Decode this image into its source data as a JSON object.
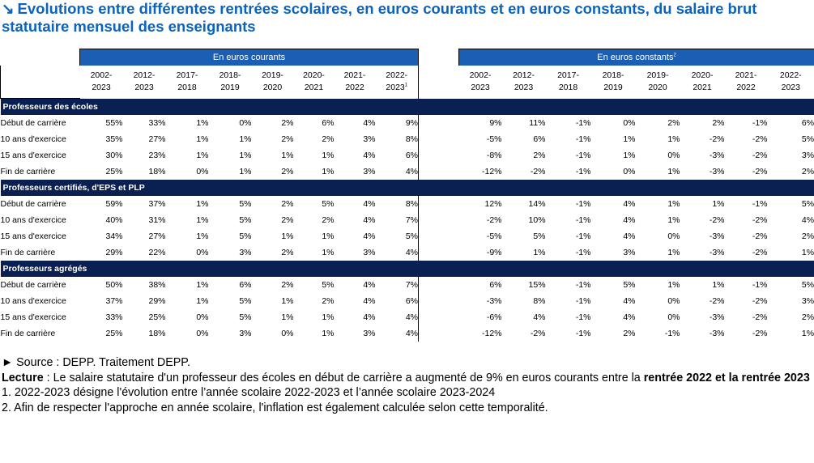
{
  "title": "Evolutions entre différentes rentrées scolaires, en euros courants et en euros constants, du salaire brut statutaire mensuel des enseignants",
  "title_icon": "arrow-down-right-icon",
  "colors": {
    "title": "#0a63c2",
    "band": "#1a5fb4",
    "group_row": "#0a2052"
  },
  "headers": {
    "courants": "En euros courants",
    "constants": "En euros constants",
    "constants_sup": "2"
  },
  "years_courants": [
    {
      "l1": "2002-",
      "l2": "2023",
      "sup": ""
    },
    {
      "l1": "2012-",
      "l2": "2023",
      "sup": ""
    },
    {
      "l1": "2017-",
      "l2": "2018",
      "sup": ""
    },
    {
      "l1": "2018-",
      "l2": "2019",
      "sup": ""
    },
    {
      "l1": "2019-",
      "l2": "2020",
      "sup": ""
    },
    {
      "l1": "2020-",
      "l2": "2021",
      "sup": ""
    },
    {
      "l1": "2021-",
      "l2": "2022",
      "sup": ""
    },
    {
      "l1": "2022-",
      "l2": "2023",
      "sup": "1"
    }
  ],
  "years_constants": [
    {
      "l1": "2002-",
      "l2": "2023",
      "sup": ""
    },
    {
      "l1": "2012-",
      "l2": "2023",
      "sup": ""
    },
    {
      "l1": "2017-",
      "l2": "2018",
      "sup": ""
    },
    {
      "l1": "2018-",
      "l2": "2019",
      "sup": ""
    },
    {
      "l1": "2019-",
      "l2": "2020",
      "sup": ""
    },
    {
      "l1": "2020-",
      "l2": "2021",
      "sup": ""
    },
    {
      "l1": "2021-",
      "l2": "2022",
      "sup": ""
    },
    {
      "l1": "2022-",
      "l2": "2023",
      "sup": ""
    }
  ],
  "groups": [
    {
      "name": "Professeurs des écoles",
      "rows": [
        {
          "label": "Début de carrière",
          "courants": [
            "55%",
            "33%",
            "1%",
            "0%",
            "2%",
            "6%",
            "4%",
            "9%"
          ],
          "constants": [
            "9%",
            "11%",
            "-1%",
            "0%",
            "2%",
            "2%",
            "-1%",
            "6%"
          ]
        },
        {
          "label": "10 ans d'exercice",
          "courants": [
            "35%",
            "27%",
            "1%",
            "1%",
            "2%",
            "2%",
            "3%",
            "8%"
          ],
          "constants": [
            "-5%",
            "6%",
            "-1%",
            "1%",
            "1%",
            "-2%",
            "-2%",
            "5%"
          ]
        },
        {
          "label": "15 ans d'exercice",
          "courants": [
            "30%",
            "23%",
            "1%",
            "1%",
            "1%",
            "1%",
            "4%",
            "6%"
          ],
          "constants": [
            "-8%",
            "2%",
            "-1%",
            "1%",
            "0%",
            "-3%",
            "-2%",
            "3%"
          ]
        },
        {
          "label": "Fin de carrière",
          "courants": [
            "25%",
            "18%",
            "0%",
            "1%",
            "2%",
            "1%",
            "3%",
            "4%"
          ],
          "constants": [
            "-12%",
            "-2%",
            "-1%",
            "0%",
            "1%",
            "-3%",
            "-2%",
            "2%"
          ]
        }
      ]
    },
    {
      "name": "Professeurs certifiés, d'EPS et PLP",
      "rows": [
        {
          "label": "Début de carrière",
          "courants": [
            "59%",
            "37%",
            "1%",
            "5%",
            "2%",
            "5%",
            "4%",
            "8%"
          ],
          "constants": [
            "12%",
            "14%",
            "-1%",
            "4%",
            "1%",
            "1%",
            "-1%",
            "5%"
          ]
        },
        {
          "label": "10 ans d'exercice",
          "courants": [
            "40%",
            "31%",
            "1%",
            "5%",
            "2%",
            "2%",
            "4%",
            "7%"
          ],
          "constants": [
            "-2%",
            "10%",
            "-1%",
            "4%",
            "1%",
            "-2%",
            "-2%",
            "4%"
          ]
        },
        {
          "label": "15 ans d'exercice",
          "courants": [
            "34%",
            "27%",
            "1%",
            "5%",
            "1%",
            "1%",
            "4%",
            "5%"
          ],
          "constants": [
            "-5%",
            "5%",
            "-1%",
            "4%",
            "0%",
            "-3%",
            "-2%",
            "2%"
          ]
        },
        {
          "label": "Fin de carrière",
          "courants": [
            "29%",
            "22%",
            "0%",
            "3%",
            "2%",
            "1%",
            "3%",
            "4%"
          ],
          "constants": [
            "-9%",
            "1%",
            "-1%",
            "3%",
            "1%",
            "-3%",
            "-2%",
            "1%"
          ]
        }
      ]
    },
    {
      "name": "Professeurs agrégés",
      "rows": [
        {
          "label": "Début de carrière",
          "courants": [
            "50%",
            "38%",
            "1%",
            "6%",
            "2%",
            "5%",
            "4%",
            "7%"
          ],
          "constants": [
            "6%",
            "15%",
            "-1%",
            "5%",
            "1%",
            "1%",
            "-1%",
            "5%"
          ]
        },
        {
          "label": "10 ans d'exercice",
          "courants": [
            "37%",
            "29%",
            "1%",
            "5%",
            "1%",
            "2%",
            "4%",
            "6%"
          ],
          "constants": [
            "-3%",
            "8%",
            "-1%",
            "4%",
            "0%",
            "-2%",
            "-2%",
            "3%"
          ]
        },
        {
          "label": "15 ans d'exercice",
          "courants": [
            "33%",
            "25%",
            "0%",
            "5%",
            "1%",
            "1%",
            "4%",
            "4%"
          ],
          "constants": [
            "-6%",
            "4%",
            "-1%",
            "4%",
            "0%",
            "-3%",
            "-2%",
            "2%"
          ]
        },
        {
          "label": "Fin de carrière",
          "courants": [
            "25%",
            "18%",
            "0%",
            "3%",
            "0%",
            "1%",
            "3%",
            "4%"
          ],
          "constants": [
            "-12%",
            "-2%",
            "-1%",
            "2%",
            "-1%",
            "-3%",
            "-2%",
            "1%"
          ]
        }
      ]
    }
  ],
  "notes": {
    "source_marker": "►",
    "source": "Source : DEPP. Traitement DEPP.",
    "lecture_label": "Lecture",
    "lecture_text": " : Le salaire statutaire d'un professeur des écoles en début de carrière a augmenté de 9% en euros courants entre la ",
    "lecture_bold": "rentrée 2022 et la rentrée 2023",
    "note1": "1. 2022-2023 désigne l'évolution entre l’année scolaire 2022-2023 et l’année scolaire 2023-2024",
    "note2": "2. Afin de respecter l'approche en année scolaire, l'inflation est également calculée selon cette temporalité."
  }
}
